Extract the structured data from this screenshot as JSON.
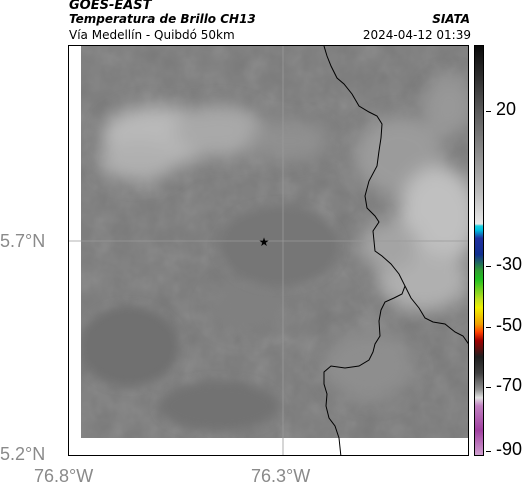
{
  "header": {
    "agency": "GOES-EAST",
    "product": "Temperatura de Brillo CH13",
    "source": "SIATA",
    "region": "Vía Medellín - Quibdó 50km",
    "timestamp": "2024-04-12 01:39"
  },
  "map": {
    "lat_labels": [
      "5.7°N",
      "5.2°N"
    ],
    "lon_labels": [
      "76.8°W",
      "76.3°W"
    ],
    "marker": "★"
  },
  "colorbar": {
    "labels": [
      "20",
      "-30",
      "-50",
      "-70",
      "-90"
    ]
  },
  "colors": {
    "background": "#777777",
    "coastline": "#000000",
    "cloud": "#bdbdbd"
  }
}
